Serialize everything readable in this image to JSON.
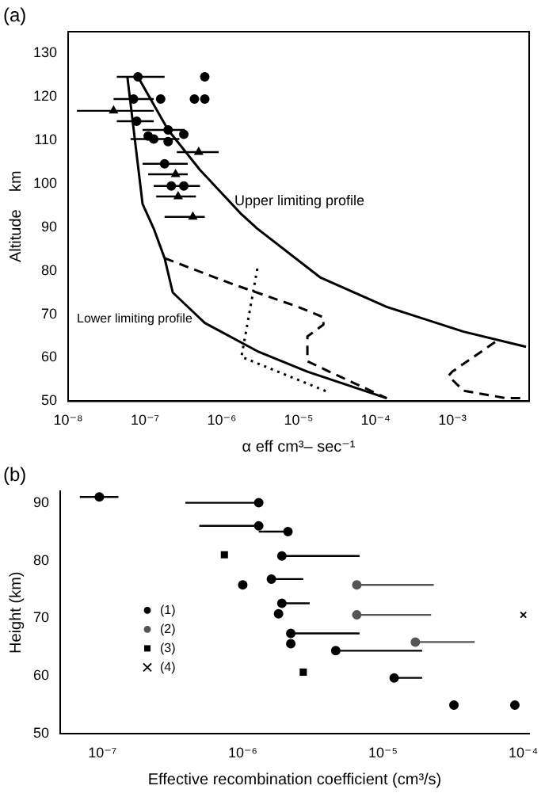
{
  "chart_data": [
    {
      "type": "scatter",
      "xlabel": "α eff cm³– sec⁻¹",
      "ylabel": "Altitude    km",
      "log": "x",
      "grid": false,
      "legend": false,
      "xlim": [
        1e-08,
        0.01
      ],
      "xticks": [
        {
          "value": 1e-08,
          "label": "10⁻⁸"
        },
        {
          "value": 1e-07,
          "label": "10⁻⁷"
        },
        {
          "value": 1e-06,
          "label": "10⁻⁶"
        },
        {
          "value": 1e-05,
          "label": "10⁻⁵"
        },
        {
          "value": 0.0001,
          "label": "10⁻⁴"
        },
        {
          "value": 0.001,
          "label": "10⁻³"
        }
      ],
      "ylim": [
        50,
        135
      ],
      "yticks": [
        50,
        60,
        70,
        80,
        90,
        100,
        110,
        120,
        130
      ],
      "annotations": [
        "(a)",
        {
          "text": "Upper limiting profile",
          "x": 1.1e-06,
          "y": 96
        },
        {
          "text": "Lower limiting profile",
          "x": 5e-07,
          "y": 69
        }
      ],
      "series": [
        {
          "type": "line",
          "color": "#000000",
          "line_style": "solid",
          "marker": "none",
          "x": [
            8.1e-08,
            2e-07,
            5.2e-07,
            1.8e-06,
            2.9e-06,
            1.9e-05,
            0.00014,
            0.0014,
            0.0091
          ],
          "values": [
            124.6,
            112.4,
            103.2,
            93,
            89.7,
            78.5,
            71.7,
            66,
            62.5
          ]
        },
        {
          "type": "line",
          "color": "#000000",
          "line_style": "solid",
          "marker": "none",
          "x": [
            5.9e-08,
            9.3e-08,
            1.3e-07,
            1.8e-07,
            2.3e-07,
            6e-07,
            2.9e-06,
            1.3e-05,
            0.00014
          ],
          "values": [
            124.6,
            95.4,
            89.7,
            82.9,
            75,
            68,
            61.5,
            56.8,
            50.7
          ]
        },
        {
          "type": "line",
          "color": "#000000",
          "line_style": "dashed",
          "marker": "none",
          "x": [
            1.8e-07,
            1.3e-06,
            9.8e-06,
            2.1e-05,
            2.1e-05,
            1.3e-05,
            1.3e-05,
            2.5e-05,
            0.00014
          ],
          "values": [
            82.9,
            77.1,
            71.7,
            69.3,
            67.6,
            64.9,
            59.2,
            56.8,
            50.7
          ]
        },
        {
          "type": "line",
          "color": "#000000",
          "line_style": "dotted",
          "marker": "none",
          "x": [
            2.9e-06,
            1.8e-06,
            2.5e-05
          ],
          "values": [
            80.5,
            60.2,
            52
          ]
        },
        {
          "type": "line",
          "color": "#000000",
          "line_style": "dashed",
          "marker": "none",
          "x": [
            0.0036,
            0.001,
            0.00089,
            0.0014,
            0.005,
            0.0091
          ],
          "values": [
            63.6,
            56.8,
            55.8,
            52.4,
            50.7,
            50.7
          ]
        },
        {
          "color": "#000000",
          "marker": "circle",
          "x": [
            8.1e-08,
            6e-07,
            7.1e-08,
            1.6e-07,
            4.4e-07,
            6e-07,
            7.8e-08,
            2e-07,
            3.2e-07,
            1.1e-07,
            1.3e-07,
            2e-07,
            1.8e-07,
            2.2e-07,
            3.2e-07
          ],
          "values": [
            124.6,
            124.6,
            119.5,
            119.5,
            119.5,
            119.5,
            114.4,
            112.4,
            111.4,
            111,
            110.3,
            109.7,
            104.6,
            99.5,
            99.5
          ],
          "xerrors": [
            [
              4.3e-08,
              1.8e-07
            ],
            null,
            [
              3.9e-08,
              1.3e-07
            ],
            null,
            null,
            null,
            [
              4.3e-08,
              1.3e-07
            ],
            [
              9.3e-08,
              3.3e-07
            ],
            null,
            null,
            [
              6.5e-08,
              2.8e-07
            ],
            null,
            [
              9.3e-08,
              3.6e-07
            ],
            [
              1.3e-07,
              5.2e-07
            ],
            null
          ]
        },
        {
          "color": "#000000",
          "marker": "triangle",
          "x": [
            3.9e-08,
            5e-07,
            2.5e-07,
            2.7e-07,
            4.2e-07
          ],
          "values": [
            116.8,
            107.3,
            102.2,
            97.1,
            92.4
          ],
          "xerrors": [
            [
              1.3e-08,
              1.3e-07
            ],
            [
              2.6e-07,
              9.1e-07
            ],
            [
              1.1e-07,
              3.6e-07
            ],
            [
              1.4e-07,
              4.6e-07
            ],
            [
              1.8e-07,
              6e-07
            ]
          ]
        }
      ]
    },
    {
      "type": "scatter",
      "xlabel": "Effective recombination coefficient (cm³/s)",
      "ylabel": "Height (km)",
      "log": "x",
      "grid": false,
      "legend": "bottom left",
      "xlim": [
        5e-08,
        0.00011
      ],
      "xticks": [
        {
          "value": 1e-07,
          "label": "10⁻⁷"
        },
        {
          "value": 1e-06,
          "label": "10⁻⁶"
        },
        {
          "value": 1e-05,
          "label": "10⁻⁵"
        },
        {
          "value": 0.0001,
          "label": "10⁻⁴"
        }
      ],
      "ylim": [
        50,
        92
      ],
      "yticks": [
        50,
        60,
        70,
        80,
        90
      ],
      "annotations": [
        "(b)"
      ],
      "series": [
        {
          "name": "(1)",
          "color": "#000000",
          "marker": "circle",
          "x": [
            9.5e-08,
            1.3e-06,
            1.3e-06,
            2.1e-06,
            1.9e-06,
            1e-06,
            1.6e-06,
            1.9e-06,
            1.8e-06,
            2.2e-06,
            2.2e-06,
            4.6e-06,
            1.2e-05,
            3.2e-05,
            8.7e-05
          ],
          "values": [
            91,
            90,
            86,
            85,
            80.8,
            75.8,
            76.8,
            72.6,
            70.8,
            67.4,
            65.6,
            64.4,
            59.7,
            55,
            55
          ],
          "xerrors": [
            [
              6.9e-08,
              1.3e-07
            ],
            [
              3.9e-07,
              1.3e-06
            ],
            [
              4.9e-07,
              1.3e-06
            ],
            [
              1.3e-06,
              2.1e-06
            ],
            [
              1.9e-06,
              6.8e-06
            ],
            null,
            [
              1.6e-06,
              2.7e-06
            ],
            [
              1.9e-06,
              3e-06
            ],
            null,
            [
              2.2e-06,
              6.8e-06
            ],
            null,
            [
              4.6e-06,
              1.9e-05
            ],
            [
              1.2e-05,
              1.9e-05
            ],
            null,
            null
          ]
        },
        {
          "name": "(2)",
          "color": "#555555",
          "marker": "circle",
          "x": [
            6.5e-06,
            6.5e-06,
            1.7e-05
          ],
          "values": [
            75.8,
            70.6,
            65.9
          ],
          "xerrors": [
            [
              6.5e-06,
              2.3e-05
            ],
            [
              6.5e-06,
              2.2e-05
            ],
            [
              1.7e-05,
              4.5e-05
            ]
          ]
        },
        {
          "name": "(3)",
          "color": "#000000",
          "marker": "square",
          "x": [
            7.4e-07,
            2.7e-06
          ],
          "values": [
            81,
            60.7
          ]
        },
        {
          "name": "(4)",
          "color": "#000000",
          "marker": "cross",
          "x": [
            0.0001
          ],
          "values": [
            70.6
          ]
        }
      ]
    }
  ]
}
